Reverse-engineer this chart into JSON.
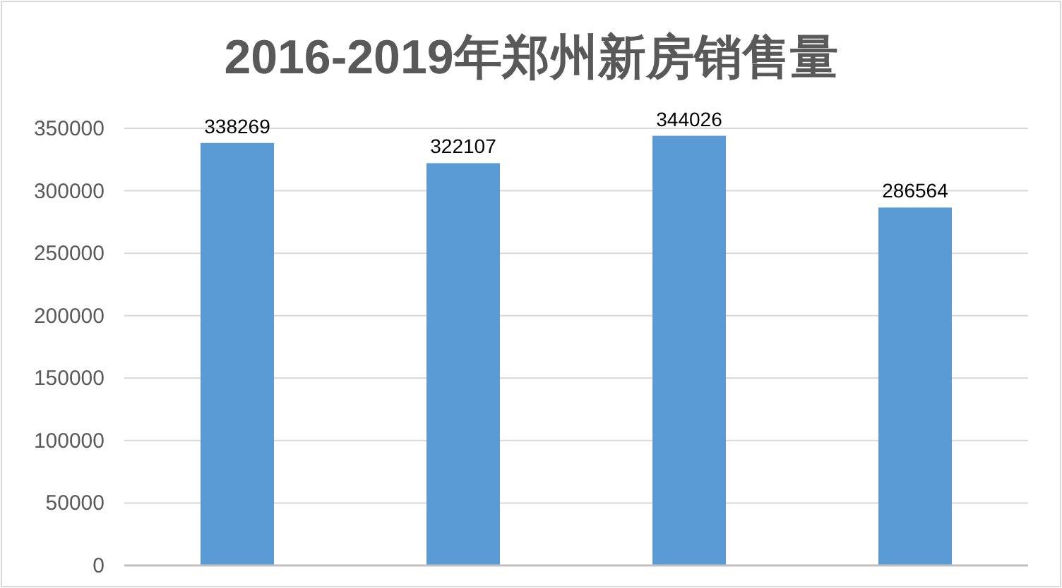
{
  "chart_data": {
    "type": "bar",
    "title": "2016-2019年郑州新房销售量",
    "categories": [
      null,
      null,
      null,
      null
    ],
    "values": [
      338269,
      322107,
      344026,
      286564
    ],
    "color": "#5b9bd5",
    "ylim": [
      0,
      350000
    ],
    "yticks": [
      0,
      50000,
      100000,
      150000,
      200000,
      250000,
      300000,
      350000
    ],
    "grid": "y",
    "data_labels": true
  }
}
